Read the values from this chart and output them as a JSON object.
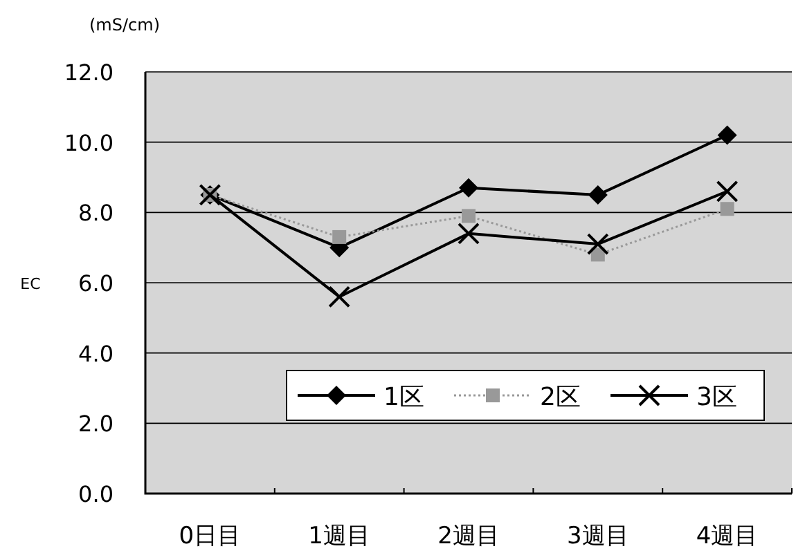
{
  "chart_data": {
    "type": "line",
    "ylabel": "EC",
    "annotations": [
      "(mS/cm)"
    ],
    "categories": [
      "0日目",
      "1週目",
      "2週目",
      "3週目",
      "4週目"
    ],
    "series": [
      {
        "name": "1区",
        "color": "#000000",
        "marker": "diamond",
        "line_style": "solid",
        "values": [
          8.5,
          7.0,
          8.7,
          8.5,
          10.2
        ]
      },
      {
        "name": "2区",
        "color": "#999999",
        "marker": "square",
        "line_style": "dotted",
        "values": [
          8.5,
          7.3,
          7.9,
          6.8,
          8.1
        ]
      },
      {
        "name": "3区",
        "color": "#000000",
        "marker": "cross",
        "line_style": "solid",
        "values": [
          8.5,
          5.6,
          7.4,
          7.1,
          8.6
        ]
      }
    ],
    "ylim": [
      0,
      12
    ],
    "yticks": [
      {
        "value": 0,
        "label": "0.0"
      },
      {
        "value": 2,
        "label": "2.0"
      },
      {
        "value": 4,
        "label": "4.0"
      },
      {
        "value": 6,
        "label": "6.0"
      },
      {
        "value": 8,
        "label": "8.0"
      },
      {
        "value": 10,
        "label": "10.0"
      },
      {
        "value": 12,
        "label": "12.0"
      }
    ],
    "grid": "y",
    "legend": "bottom right"
  }
}
